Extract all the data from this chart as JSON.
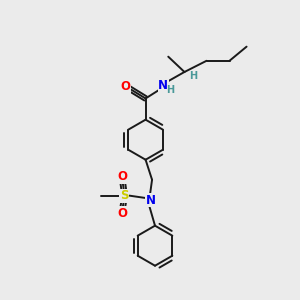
{
  "bg_color": "#ebebeb",
  "bond_color": "#1a1a1a",
  "atom_colors": {
    "O": "#ff0000",
    "N": "#0000ee",
    "S": "#cccc00",
    "H": "#4a9999",
    "C": "#1a1a1a"
  },
  "font_size_atom": 8.5,
  "font_size_h": 7.0,
  "linewidth": 1.4,
  "ring_r": 0.65,
  "scale": 1.0
}
